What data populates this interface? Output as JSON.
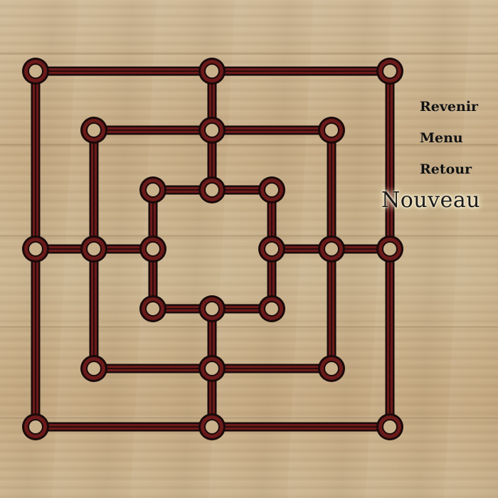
{
  "game": {
    "type": "nine-men-morris",
    "board_color": "#6b1a1a",
    "board_outline": "#1a0a0a",
    "points": 24,
    "pieces_on_board": 0
  },
  "menu": {
    "items": [
      {
        "label": "Revenir",
        "name": "menu-item-revenir",
        "active": false
      },
      {
        "label": "Menu",
        "name": "menu-item-menu",
        "active": false
      },
      {
        "label": "Retour",
        "name": "menu-item-retour",
        "active": false
      },
      {
        "label": "Nouveau",
        "name": "menu-item-nouveau",
        "active": true
      }
    ]
  }
}
